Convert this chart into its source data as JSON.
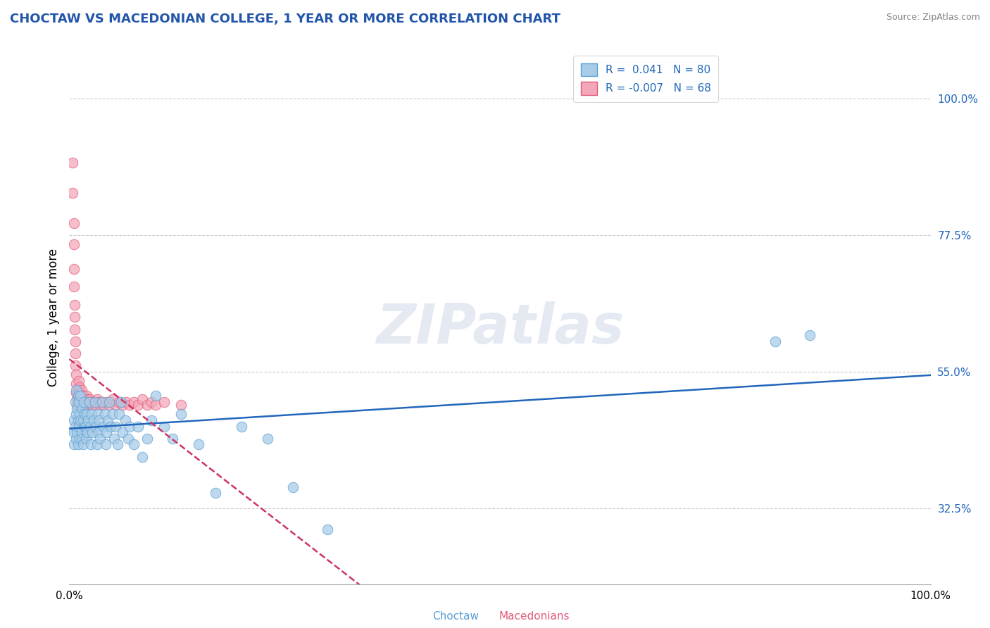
{
  "title": "CHOCTAW VS MACEDONIAN COLLEGE, 1 YEAR OR MORE CORRELATION CHART",
  "source": "Source: ZipAtlas.com",
  "ylabel": "College, 1 year or more",
  "ytick_labels": [
    "32.5%",
    "55.0%",
    "77.5%",
    "100.0%"
  ],
  "ytick_values": [
    0.325,
    0.55,
    0.775,
    1.0
  ],
  "xlim": [
    0.0,
    1.0
  ],
  "ylim": [
    0.2,
    1.08
  ],
  "legend_label_1": "R =  0.041   N = 80",
  "legend_label_2": "R = -0.007   N = 68",
  "choctaw_x": [
    0.005,
    0.005,
    0.005,
    0.007,
    0.007,
    0.008,
    0.008,
    0.008,
    0.009,
    0.009,
    0.01,
    0.01,
    0.01,
    0.011,
    0.011,
    0.012,
    0.012,
    0.013,
    0.013,
    0.014,
    0.015,
    0.015,
    0.016,
    0.016,
    0.017,
    0.018,
    0.018,
    0.019,
    0.019,
    0.02,
    0.021,
    0.022,
    0.023,
    0.024,
    0.025,
    0.026,
    0.027,
    0.028,
    0.03,
    0.031,
    0.032,
    0.033,
    0.034,
    0.035,
    0.036,
    0.038,
    0.04,
    0.041,
    0.042,
    0.043,
    0.045,
    0.046,
    0.048,
    0.05,
    0.052,
    0.054,
    0.056,
    0.058,
    0.06,
    0.062,
    0.065,
    0.068,
    0.07,
    0.075,
    0.08,
    0.085,
    0.09,
    0.095,
    0.1,
    0.11,
    0.12,
    0.13,
    0.15,
    0.17,
    0.2,
    0.23,
    0.26,
    0.3,
    0.82,
    0.86
  ],
  "choctaw_y": [
    0.47,
    0.45,
    0.43,
    0.5,
    0.46,
    0.52,
    0.48,
    0.44,
    0.49,
    0.45,
    0.51,
    0.47,
    0.43,
    0.5,
    0.46,
    0.48,
    0.44,
    0.51,
    0.47,
    0.45,
    0.49,
    0.44,
    0.47,
    0.43,
    0.5,
    0.46,
    0.48,
    0.44,
    0.46,
    0.48,
    0.45,
    0.47,
    0.5,
    0.46,
    0.43,
    0.48,
    0.45,
    0.47,
    0.5,
    0.46,
    0.43,
    0.48,
    0.45,
    0.47,
    0.44,
    0.5,
    0.46,
    0.48,
    0.43,
    0.45,
    0.47,
    0.5,
    0.46,
    0.48,
    0.44,
    0.46,
    0.43,
    0.48,
    0.5,
    0.45,
    0.47,
    0.44,
    0.46,
    0.43,
    0.46,
    0.41,
    0.44,
    0.47,
    0.51,
    0.46,
    0.44,
    0.48,
    0.43,
    0.35,
    0.46,
    0.44,
    0.36,
    0.29,
    0.6,
    0.61
  ],
  "macedonian_x": [
    0.004,
    0.004,
    0.005,
    0.005,
    0.005,
    0.005,
    0.006,
    0.006,
    0.006,
    0.007,
    0.007,
    0.007,
    0.008,
    0.008,
    0.008,
    0.009,
    0.009,
    0.01,
    0.01,
    0.01,
    0.011,
    0.011,
    0.011,
    0.012,
    0.012,
    0.012,
    0.013,
    0.013,
    0.014,
    0.014,
    0.015,
    0.015,
    0.016,
    0.016,
    0.017,
    0.018,
    0.018,
    0.019,
    0.02,
    0.021,
    0.022,
    0.023,
    0.024,
    0.025,
    0.027,
    0.028,
    0.03,
    0.032,
    0.034,
    0.036,
    0.038,
    0.04,
    0.043,
    0.046,
    0.05,
    0.054,
    0.058,
    0.062,
    0.066,
    0.07,
    0.075,
    0.08,
    0.085,
    0.09,
    0.095,
    0.1,
    0.11,
    0.13
  ],
  "macedonian_y": [
    0.895,
    0.845,
    0.795,
    0.76,
    0.72,
    0.69,
    0.66,
    0.64,
    0.62,
    0.6,
    0.58,
    0.56,
    0.545,
    0.53,
    0.515,
    0.505,
    0.495,
    0.52,
    0.51,
    0.5,
    0.535,
    0.52,
    0.505,
    0.525,
    0.51,
    0.495,
    0.515,
    0.5,
    0.52,
    0.505,
    0.51,
    0.495,
    0.51,
    0.495,
    0.51,
    0.5,
    0.49,
    0.505,
    0.51,
    0.505,
    0.5,
    0.495,
    0.505,
    0.5,
    0.495,
    0.5,
    0.495,
    0.505,
    0.5,
    0.495,
    0.5,
    0.495,
    0.5,
    0.495,
    0.505,
    0.495,
    0.5,
    0.495,
    0.5,
    0.495,
    0.5,
    0.495,
    0.505,
    0.495,
    0.5,
    0.495,
    0.5,
    0.495
  ],
  "choctaw_color": "#a8cce8",
  "choctaw_edge": "#5a9fd4",
  "macedonian_color": "#f4a7b9",
  "macedonian_edge": "#e05c7a",
  "trend_choctaw_color": "#2266bb",
  "trend_macedonian_color": "#cc3366",
  "watermark": "ZIPatlas",
  "grid_color": "#cccccc",
  "background_color": "#ffffff",
  "bottom_label_choctaw": "Choctaw",
  "bottom_label_macedonian": "Macedonians"
}
